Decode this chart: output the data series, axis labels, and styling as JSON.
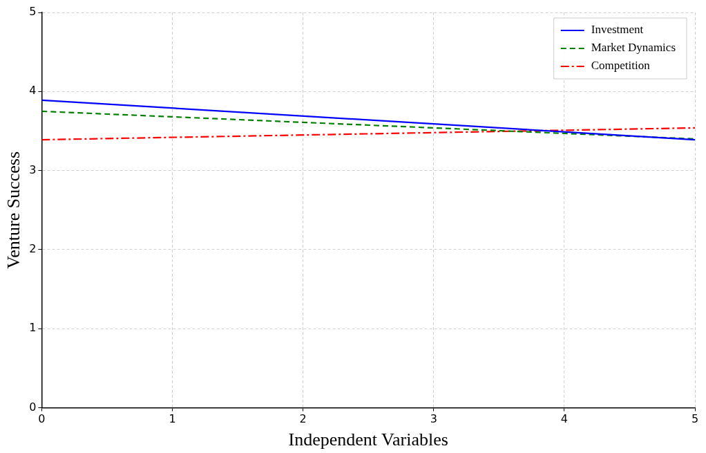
{
  "chart_data": {
    "type": "line",
    "xlabel": "Independent Variables",
    "ylabel": "Venture Success",
    "x": [
      0,
      5
    ],
    "series": [
      {
        "name": "Investment",
        "color": "#0000ff",
        "line_style": "solid",
        "values": [
          3.89,
          3.39
        ]
      },
      {
        "name": "Market Dynamics",
        "color": "#008000",
        "line_style": "dashed",
        "values": [
          3.75,
          3.4
        ]
      },
      {
        "name": "Competition",
        "color": "#ff0000",
        "line_style": "dashdot",
        "values": [
          3.39,
          3.54
        ]
      }
    ],
    "xlim": [
      0,
      5
    ],
    "xticks": [
      0,
      1,
      2,
      3,
      4,
      5
    ],
    "ylim": [
      0,
      5
    ],
    "yticks": [
      0,
      1,
      2,
      3,
      4,
      5
    ],
    "grid": true,
    "legend": "top right",
    "marker": "none"
  }
}
